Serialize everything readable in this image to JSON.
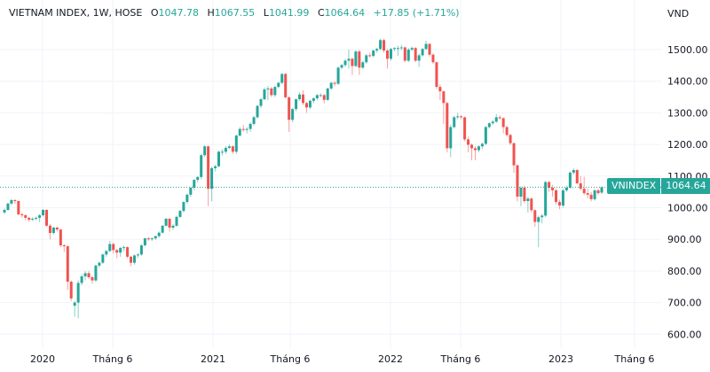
{
  "header": {
    "symbol": "VIETNAM INDEX, 1W, HOSE",
    "open_label": "O",
    "open": "1047.78",
    "high_label": "H",
    "high": "1067.55",
    "low_label": "L",
    "low": "1041.99",
    "close_label": "C",
    "close": "1064.64",
    "change": "+17.85 (+1.71%)"
  },
  "last_price": {
    "name": "VNINDEX",
    "value": "1064.64"
  },
  "colors": {
    "up": "#26a69a",
    "down": "#ef5350",
    "grid": "#f0f3fa",
    "text": "#131722"
  },
  "chart_data": {
    "type": "candlestick",
    "interval": "1W",
    "currency_label": "VND",
    "ylim": [
      580,
      1560
    ],
    "y_ticks": [
      "1500.00",
      "1400.00",
      "1300.00",
      "1200.00",
      "1100.00",
      "1000.00",
      "900.00",
      "800.00",
      "700.00",
      "600.00"
    ],
    "x_ticks": [
      "2020",
      "Tháng 6",
      "2021",
      "Tháng 6",
      "2022",
      "Tháng 6",
      "2023",
      "Tháng 6"
    ],
    "grid": true,
    "last_value": 1064.64,
    "candles": [
      [
        985,
        998,
        980,
        993
      ],
      [
        993,
        1016,
        990,
        1013
      ],
      [
        1013,
        1028,
        1008,
        1024
      ],
      [
        1024,
        1027,
        1012,
        1021
      ],
      [
        1021,
        1023,
        975,
        979
      ],
      [
        979,
        985,
        968,
        976
      ],
      [
        976,
        980,
        960,
        968
      ],
      [
        968,
        972,
        955,
        962
      ],
      [
        962,
        970,
        958,
        965
      ],
      [
        965,
        972,
        960,
        968
      ],
      [
        968,
        980,
        955,
        976
      ],
      [
        976,
        996,
        972,
        993
      ],
      [
        993,
        995,
        940,
        943
      ],
      [
        943,
        948,
        900,
        920
      ],
      [
        920,
        940,
        915,
        937
      ],
      [
        937,
        940,
        925,
        931
      ],
      [
        931,
        933,
        875,
        881
      ],
      [
        881,
        885,
        860,
        878
      ],
      [
        878,
        880,
        740,
        766
      ],
      [
        766,
        770,
        705,
        713
      ],
      [
        690,
        705,
        655,
        700
      ],
      [
        700,
        770,
        650,
        762
      ],
      [
        762,
        790,
        755,
        783
      ],
      [
        783,
        800,
        770,
        793
      ],
      [
        793,
        800,
        775,
        780
      ],
      [
        780,
        785,
        760,
        770
      ],
      [
        770,
        820,
        765,
        817
      ],
      [
        817,
        830,
        810,
        826
      ],
      [
        826,
        855,
        822,
        852
      ],
      [
        852,
        866,
        845,
        863
      ],
      [
        863,
        895,
        860,
        885
      ],
      [
        885,
        890,
        855,
        866
      ],
      [
        866,
        870,
        840,
        858
      ],
      [
        858,
        875,
        845,
        873
      ],
      [
        873,
        880,
        862,
        875
      ],
      [
        875,
        878,
        840,
        845
      ],
      [
        845,
        848,
        815,
        826
      ],
      [
        826,
        852,
        820,
        849
      ],
      [
        849,
        856,
        842,
        852
      ],
      [
        852,
        885,
        848,
        881
      ],
      [
        881,
        905,
        878,
        903
      ],
      [
        903,
        908,
        895,
        900
      ],
      [
        900,
        906,
        895,
        903
      ],
      [
        903,
        912,
        898,
        910
      ],
      [
        910,
        925,
        905,
        921
      ],
      [
        921,
        945,
        918,
        943
      ],
      [
        943,
        968,
        940,
        965
      ],
      [
        965,
        967,
        925,
        937
      ],
      [
        937,
        948,
        930,
        943
      ],
      [
        943,
        975,
        940,
        971
      ],
      [
        971,
        993,
        968,
        990
      ],
      [
        990,
        1020,
        985,
        1018
      ],
      [
        1018,
        1045,
        1012,
        1041
      ],
      [
        1041,
        1066,
        1035,
        1063
      ],
      [
        1063,
        1090,
        1055,
        1088
      ],
      [
        1088,
        1100,
        1080,
        1097
      ],
      [
        1097,
        1170,
        1090,
        1166
      ],
      [
        1166,
        1198,
        1160,
        1194
      ],
      [
        1194,
        1196,
        1005,
        1060
      ],
      [
        1060,
        1130,
        1020,
        1125
      ],
      [
        1125,
        1135,
        1115,
        1131
      ],
      [
        1131,
        1180,
        1128,
        1177
      ],
      [
        1177,
        1185,
        1165,
        1177
      ],
      [
        1177,
        1195,
        1170,
        1189
      ],
      [
        1189,
        1200,
        1185,
        1194
      ],
      [
        1194,
        1197,
        1170,
        1177
      ],
      [
        1177,
        1232,
        1170,
        1228
      ],
      [
        1228,
        1255,
        1225,
        1249
      ],
      [
        1249,
        1262,
        1240,
        1246
      ],
      [
        1246,
        1255,
        1235,
        1249
      ],
      [
        1249,
        1270,
        1240,
        1265
      ],
      [
        1265,
        1290,
        1260,
        1286
      ],
      [
        1286,
        1325,
        1282,
        1322
      ],
      [
        1322,
        1348,
        1315,
        1343
      ],
      [
        1343,
        1380,
        1340,
        1374
      ],
      [
        1374,
        1385,
        1340,
        1377
      ],
      [
        1377,
        1382,
        1350,
        1356
      ],
      [
        1356,
        1386,
        1350,
        1382
      ],
      [
        1382,
        1398,
        1378,
        1395
      ],
      [
        1395,
        1426,
        1390,
        1423
      ],
      [
        1423,
        1426,
        1345,
        1349
      ],
      [
        1349,
        1352,
        1240,
        1278
      ],
      [
        1278,
        1316,
        1270,
        1312
      ],
      [
        1312,
        1345,
        1305,
        1343
      ],
      [
        1343,
        1365,
        1338,
        1358
      ],
      [
        1358,
        1372,
        1325,
        1331
      ],
      [
        1331,
        1335,
        1300,
        1317
      ],
      [
        1317,
        1342,
        1312,
        1338
      ],
      [
        1338,
        1350,
        1330,
        1346
      ],
      [
        1346,
        1360,
        1340,
        1356
      ],
      [
        1356,
        1362,
        1350,
        1356
      ],
      [
        1356,
        1360,
        1330,
        1341
      ],
      [
        1341,
        1380,
        1338,
        1377
      ],
      [
        1377,
        1398,
        1372,
        1395
      ],
      [
        1395,
        1400,
        1385,
        1392
      ],
      [
        1392,
        1446,
        1388,
        1443
      ],
      [
        1443,
        1455,
        1438,
        1451
      ],
      [
        1451,
        1470,
        1445,
        1465
      ],
      [
        1465,
        1500,
        1440,
        1471
      ],
      [
        1471,
        1474,
        1420,
        1448
      ],
      [
        1448,
        1498,
        1445,
        1494
      ],
      [
        1494,
        1500,
        1420,
        1443
      ],
      [
        1443,
        1465,
        1438,
        1460
      ],
      [
        1460,
        1486,
        1455,
        1482
      ],
      [
        1482,
        1490,
        1475,
        1480
      ],
      [
        1480,
        1500,
        1475,
        1497
      ],
      [
        1497,
        1506,
        1490,
        1502
      ],
      [
        1502,
        1535,
        1498,
        1530
      ],
      [
        1530,
        1534,
        1490,
        1497
      ],
      [
        1497,
        1502,
        1440,
        1471
      ],
      [
        1471,
        1505,
        1465,
        1502
      ],
      [
        1502,
        1508,
        1495,
        1505
      ],
      [
        1505,
        1512,
        1480,
        1505
      ],
      [
        1505,
        1515,
        1498,
        1507
      ],
      [
        1507,
        1510,
        1460,
        1465
      ],
      [
        1465,
        1505,
        1460,
        1500
      ],
      [
        1500,
        1510,
        1495,
        1505
      ],
      [
        1505,
        1508,
        1460,
        1465
      ],
      [
        1465,
        1488,
        1445,
        1482
      ],
      [
        1482,
        1505,
        1478,
        1502
      ],
      [
        1502,
        1528,
        1498,
        1518
      ],
      [
        1518,
        1520,
        1478,
        1484
      ],
      [
        1484,
        1488,
        1455,
        1460
      ],
      [
        1460,
        1462,
        1375,
        1382
      ],
      [
        1382,
        1390,
        1340,
        1368
      ],
      [
        1368,
        1370,
        1265,
        1331
      ],
      [
        1331,
        1335,
        1175,
        1188
      ],
      [
        1188,
        1262,
        1160,
        1255
      ],
      [
        1255,
        1290,
        1250,
        1286
      ],
      [
        1286,
        1300,
        1280,
        1289
      ],
      [
        1289,
        1293,
        1280,
        1286
      ],
      [
        1286,
        1288,
        1210,
        1216
      ],
      [
        1216,
        1225,
        1175,
        1199
      ],
      [
        1199,
        1203,
        1150,
        1188
      ],
      [
        1188,
        1194,
        1150,
        1182
      ],
      [
        1182,
        1198,
        1175,
        1194
      ],
      [
        1194,
        1206,
        1185,
        1202
      ],
      [
        1202,
        1258,
        1198,
        1255
      ],
      [
        1255,
        1270,
        1250,
        1267
      ],
      [
        1267,
        1278,
        1262,
        1272
      ],
      [
        1272,
        1296,
        1268,
        1286
      ],
      [
        1286,
        1292,
        1278,
        1283
      ],
      [
        1283,
        1286,
        1235,
        1255
      ],
      [
        1255,
        1260,
        1225,
        1230
      ],
      [
        1230,
        1234,
        1198,
        1204
      ],
      [
        1204,
        1206,
        1110,
        1134
      ],
      [
        1134,
        1137,
        1020,
        1035
      ],
      [
        1035,
        1068,
        1005,
        1063
      ],
      [
        1063,
        1070,
        1015,
        1021
      ],
      [
        1021,
        1035,
        985,
        1029
      ],
      [
        1029,
        1032,
        985,
        992
      ],
      [
        992,
        995,
        940,
        955
      ],
      [
        955,
        975,
        875,
        970
      ],
      [
        970,
        980,
        950,
        975
      ],
      [
        975,
        1085,
        970,
        1081
      ],
      [
        1081,
        1085,
        1050,
        1063
      ],
      [
        1063,
        1072,
        1035,
        1055
      ],
      [
        1055,
        1060,
        1010,
        1018
      ],
      [
        1018,
        1025,
        995,
        1007
      ],
      [
        1007,
        1060,
        1000,
        1055
      ],
      [
        1055,
        1070,
        1050,
        1063
      ],
      [
        1063,
        1115,
        1060,
        1111
      ],
      [
        1111,
        1125,
        1105,
        1119
      ],
      [
        1119,
        1122,
        1075,
        1077
      ],
      [
        1077,
        1100,
        1055,
        1060
      ],
      [
        1060,
        1098,
        1040,
        1046
      ],
      [
        1046,
        1060,
        1030,
        1041
      ],
      [
        1041,
        1050,
        1020,
        1027
      ],
      [
        1027,
        1058,
        1022,
        1055
      ],
      [
        1055,
        1060,
        1040,
        1046
      ],
      [
        1047.78,
        1067.55,
        1041.99,
        1064.64
      ]
    ]
  }
}
